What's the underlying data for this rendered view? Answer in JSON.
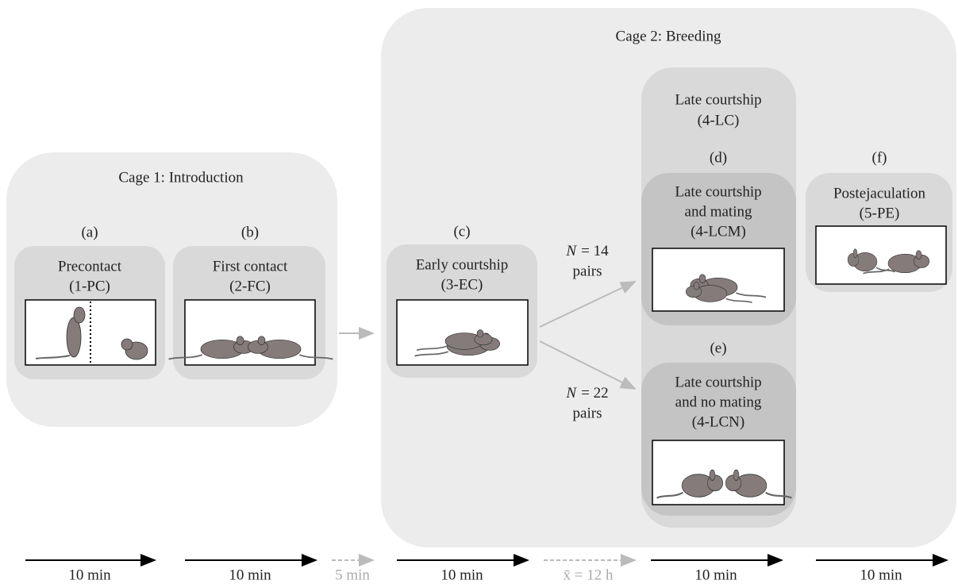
{
  "cage1": {
    "title": "Cage 1: Introduction",
    "stages": [
      {
        "letter": "(a)",
        "name": "Precontact",
        "code": "(1-PC)"
      },
      {
        "letter": "(b)",
        "name": "First contact",
        "code": "(2-FC)"
      }
    ]
  },
  "cage2": {
    "title": "Cage 2: Breeding",
    "early": {
      "letter": "(c)",
      "name": "Early courtship",
      "code": "(3-EC)"
    },
    "late": {
      "name": "Late courtship",
      "code": "(4-LC)",
      "mating": {
        "letter": "(d)",
        "lines": [
          "Late courtship",
          "and mating",
          "(4-LCM)"
        ]
      },
      "no_mating": {
        "letter": "(e)",
        "lines": [
          "Late courtship",
          "and no mating",
          "(4-LCN)"
        ]
      }
    },
    "post": {
      "letter": "(f)",
      "name": "Postejaculation",
      "code": "(5-PE)"
    },
    "branches": [
      {
        "variable": "N",
        "value": "= 14",
        "unit": "pairs"
      },
      {
        "variable": "N",
        "value": "= 22",
        "unit": "pairs"
      }
    ]
  },
  "timeline": [
    "10 min",
    "10 min",
    "5 min",
    "10 min",
    "x̄ = 12 h",
    "10 min",
    "10 min"
  ]
}
